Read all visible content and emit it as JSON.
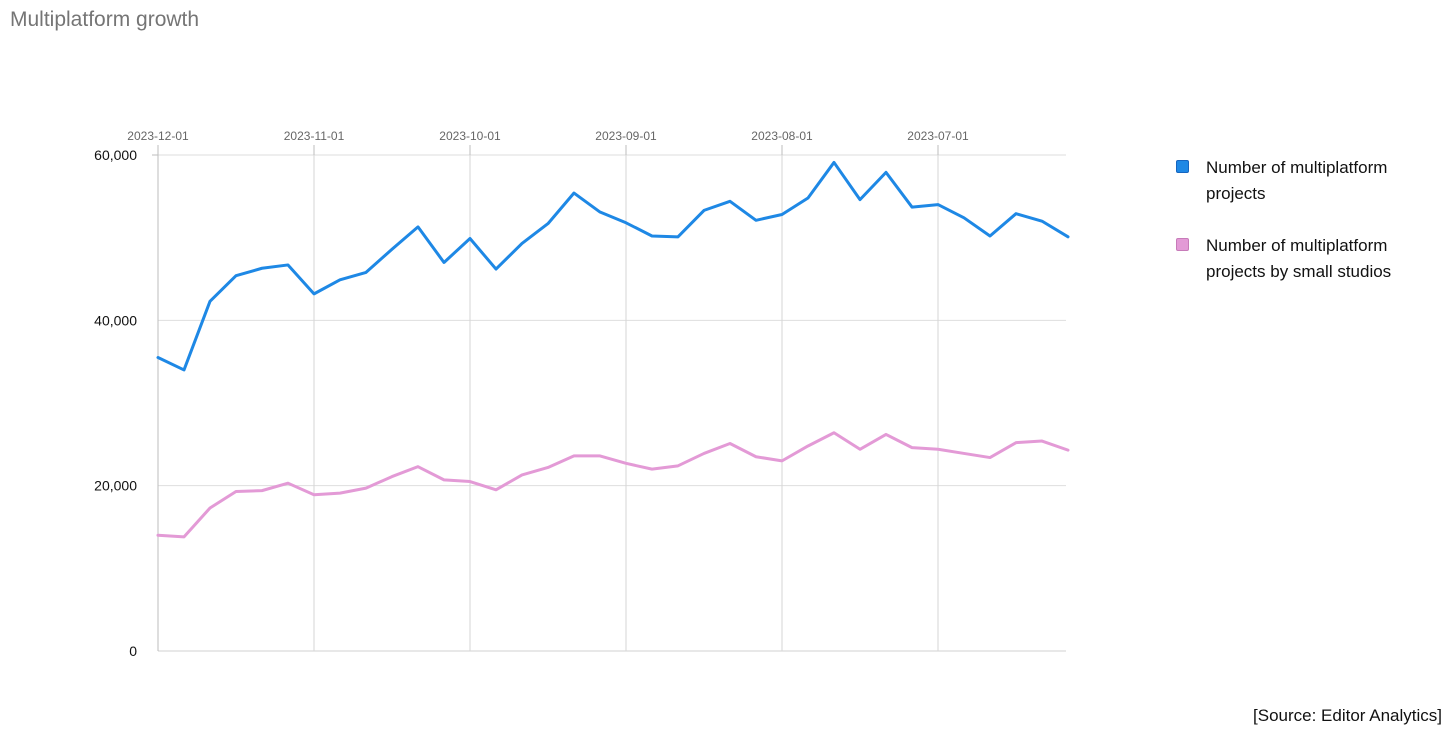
{
  "title": "Multiplatform growth",
  "source": "[Source: Editor Analytics]",
  "chart_data": {
    "type": "line",
    "title": "Multiplatform growth",
    "xlabel": "",
    "ylabel": "",
    "ylim": [
      0,
      60000
    ],
    "yticks": [
      0,
      20000,
      40000,
      60000
    ],
    "ytick_labels": [
      "0",
      "20,000",
      "40,000",
      "60,000"
    ],
    "x_direction": "descending-dates",
    "x_tick_labels": [
      "2023-12-01",
      "2023-11-01",
      "2023-10-01",
      "2023-09-01",
      "2023-08-01",
      "2023-07-01"
    ],
    "x_tick_indices": [
      0,
      6,
      12,
      18,
      24,
      30
    ],
    "grid": true,
    "legend_position": "right",
    "series": [
      {
        "name": "Number of multiplatform projects",
        "color": "#1e88e5",
        "values": [
          35500,
          34000,
          42300,
          45400,
          46300,
          46700,
          43200,
          44900,
          45800,
          48600,
          51300,
          47000,
          49900,
          46200,
          49300,
          51700,
          55400,
          53100,
          51800,
          50200,
          50100,
          53300,
          54400,
          52100,
          52800,
          54800,
          59100,
          54600,
          57900,
          53700,
          54000,
          52400,
          50200,
          52900,
          52000,
          50100
        ]
      },
      {
        "name": "Number of multiplatform projects by small studios",
        "color": "#e39ad6",
        "values": [
          14000,
          13800,
          17300,
          19300,
          19400,
          20300,
          18900,
          19100,
          19700,
          21100,
          22300,
          20700,
          20500,
          19500,
          21300,
          22200,
          23600,
          23600,
          22700,
          22000,
          22400,
          23900,
          25100,
          23500,
          23000,
          24800,
          26400,
          24400,
          26200,
          24600,
          24400,
          23900,
          23400,
          25200,
          25400,
          24300
        ]
      }
    ]
  }
}
